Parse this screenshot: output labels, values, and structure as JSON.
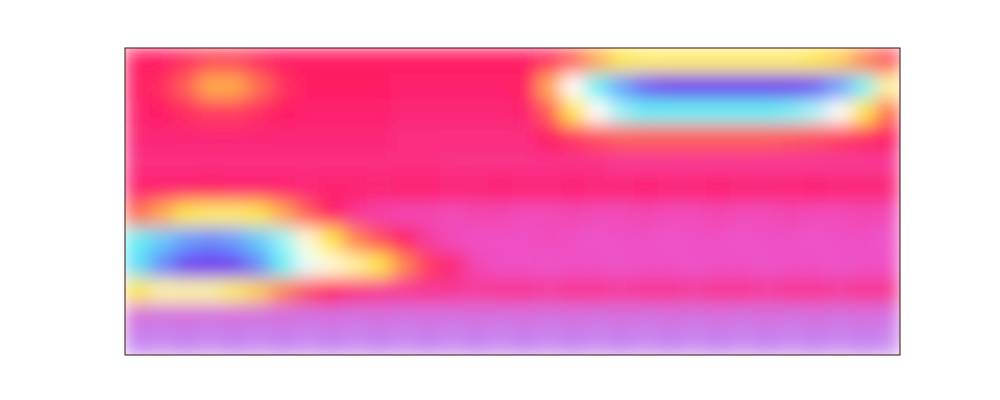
{
  "chart_data": {
    "type": "heatmap",
    "tick_labels": false,
    "zlim": [
      0,
      1
    ],
    "values": [
      [
        0.3,
        0.3,
        0.32,
        0.35,
        0.35,
        0.32,
        0.3,
        0.3,
        0.3,
        0.3,
        0.3,
        0.3,
        0.3,
        0.3,
        0.3,
        0.3,
        0.3,
        0.32,
        0.38,
        0.45,
        0.5,
        0.52,
        0.52,
        0.52,
        0.52,
        0.52,
        0.52,
        0.52,
        0.5,
        0.48,
        0.42,
        0.36
      ],
      [
        0.3,
        0.32,
        0.38,
        0.45,
        0.45,
        0.4,
        0.33,
        0.3,
        0.3,
        0.3,
        0.3,
        0.29,
        0.29,
        0.29,
        0.29,
        0.29,
        0.3,
        0.45,
        0.6,
        0.72,
        0.85,
        0.95,
        1.0,
        1.0,
        1.0,
        1.0,
        1.0,
        1.0,
        0.95,
        0.85,
        0.7,
        0.55
      ],
      [
        0.29,
        0.3,
        0.32,
        0.34,
        0.34,
        0.32,
        0.3,
        0.29,
        0.29,
        0.29,
        0.29,
        0.28,
        0.28,
        0.28,
        0.28,
        0.28,
        0.29,
        0.38,
        0.5,
        0.6,
        0.68,
        0.72,
        0.72,
        0.72,
        0.72,
        0.72,
        0.72,
        0.7,
        0.66,
        0.6,
        0.5,
        0.4
      ],
      [
        0.28,
        0.28,
        0.28,
        0.28,
        0.28,
        0.28,
        0.28,
        0.28,
        0.28,
        0.28,
        0.28,
        0.27,
        0.27,
        0.27,
        0.27,
        0.27,
        0.27,
        0.3,
        0.33,
        0.36,
        0.38,
        0.38,
        0.38,
        0.38,
        0.38,
        0.38,
        0.38,
        0.37,
        0.36,
        0.34,
        0.32,
        0.3
      ],
      [
        0.27,
        0.27,
        0.27,
        0.27,
        0.27,
        0.27,
        0.27,
        0.27,
        0.27,
        0.27,
        0.27,
        0.27,
        0.27,
        0.26,
        0.26,
        0.26,
        0.26,
        0.26,
        0.26,
        0.26,
        0.25,
        0.25,
        0.25,
        0.25,
        0.25,
        0.25,
        0.25,
        0.25,
        0.25,
        0.25,
        0.25,
        0.25
      ],
      [
        0.29,
        0.29,
        0.29,
        0.3,
        0.29,
        0.29,
        0.29,
        0.28,
        0.29,
        0.29,
        0.28,
        0.29,
        0.29,
        0.28,
        0.28,
        0.29,
        0.28,
        0.28,
        0.29,
        0.28,
        0.28,
        0.29,
        0.28,
        0.28,
        0.29,
        0.28,
        0.28,
        0.28,
        0.29,
        0.28,
        0.28,
        0.28
      ],
      [
        0.4,
        0.45,
        0.5,
        0.52,
        0.52,
        0.5,
        0.45,
        0.38,
        0.3,
        0.25,
        0.23,
        0.22,
        0.22,
        0.21,
        0.22,
        0.22,
        0.21,
        0.21,
        0.22,
        0.21,
        0.21,
        0.22,
        0.21,
        0.21,
        0.22,
        0.21,
        0.21,
        0.22,
        0.21,
        0.21,
        0.22,
        0.21
      ],
      [
        0.72,
        0.78,
        0.85,
        0.88,
        0.85,
        0.78,
        0.68,
        0.58,
        0.5,
        0.42,
        0.36,
        0.3,
        0.24,
        0.21,
        0.2,
        0.2,
        0.2,
        0.21,
        0.2,
        0.19,
        0.2,
        0.2,
        0.19,
        0.2,
        0.2,
        0.19,
        0.2,
        0.2,
        0.19,
        0.2,
        0.2,
        0.19
      ],
      [
        0.75,
        0.88,
        0.98,
        1.0,
        0.98,
        0.88,
        0.72,
        0.62,
        0.58,
        0.55,
        0.5,
        0.42,
        0.34,
        0.28,
        0.22,
        0.2,
        0.2,
        0.19,
        0.2,
        0.2,
        0.19,
        0.2,
        0.2,
        0.19,
        0.2,
        0.2,
        0.19,
        0.2,
        0.2,
        0.19,
        0.2,
        0.2
      ],
      [
        0.5,
        0.55,
        0.55,
        0.55,
        0.52,
        0.48,
        0.42,
        0.36,
        0.3,
        0.27,
        0.25,
        0.25,
        0.25,
        0.25,
        0.24,
        0.25,
        0.25,
        0.24,
        0.25,
        0.25,
        0.24,
        0.25,
        0.25,
        0.24,
        0.25,
        0.25,
        0.24,
        0.25,
        0.25,
        0.24,
        0.25,
        0.25
      ],
      [
        0.14,
        0.13,
        0.14,
        0.13,
        0.14,
        0.13,
        0.14,
        0.13,
        0.14,
        0.13,
        0.14,
        0.13,
        0.14,
        0.13,
        0.14,
        0.13,
        0.14,
        0.13,
        0.14,
        0.13,
        0.14,
        0.13,
        0.14,
        0.13,
        0.14,
        0.13,
        0.14,
        0.13,
        0.14,
        0.13,
        0.14,
        0.13
      ],
      [
        0.1,
        0.09,
        0.1,
        0.09,
        0.1,
        0.09,
        0.1,
        0.09,
        0.1,
        0.09,
        0.1,
        0.09,
        0.1,
        0.09,
        0.1,
        0.09,
        0.1,
        0.09,
        0.1,
        0.09,
        0.1,
        0.09,
        0.1,
        0.09,
        0.1,
        0.09,
        0.1,
        0.09,
        0.1,
        0.09,
        0.1,
        0.09
      ]
    ]
  }
}
